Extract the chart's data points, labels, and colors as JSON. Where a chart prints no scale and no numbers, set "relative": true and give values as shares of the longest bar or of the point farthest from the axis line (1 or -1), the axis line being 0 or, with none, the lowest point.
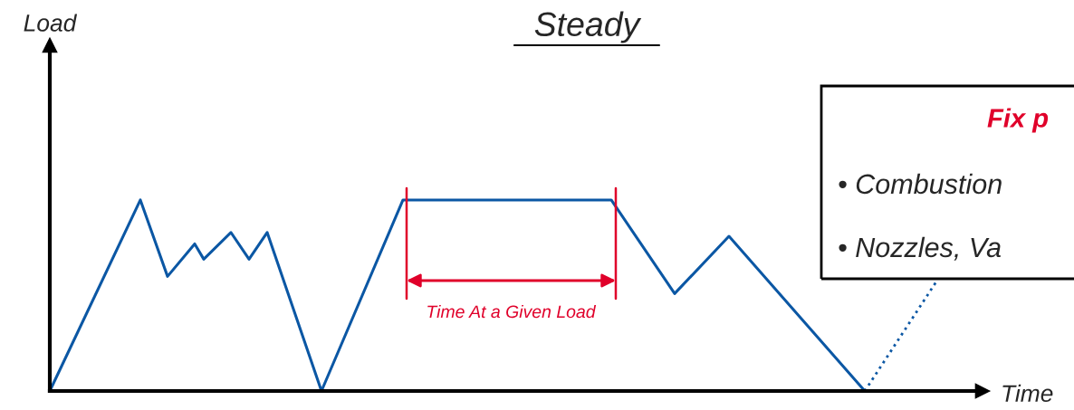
{
  "chart_data": {
    "type": "line",
    "title": "Steady",
    "xlabel": "Time",
    "relative": true,
    "categories": [
      null,
      null,
      null,
      null,
      null,
      null,
      null,
      null,
      null,
      null,
      null,
      null,
      null,
      null,
      null,
      null,
      null,
      null,
      null,
      null,
      null,
      null,
      null,
      null,
      null,
      null,
      null,
      null,
      null,
      null,
      null,
      null,
      null,
      null,
      null,
      null,
      null,
      null,
      null,
      null,
      null,
      null,
      null,
      null,
      null,
      null,
      null,
      null,
      null,
      null,
      null,
      null,
      null,
      null,
      null,
      null,
      null,
      null,
      null,
      null,
      null,
      null,
      null,
      null,
      null,
      null,
      null,
      null,
      null,
      null,
      null,
      null,
      null,
      null,
      null,
      null,
      null,
      null,
      null,
      null,
      null,
      null,
      null,
      null,
      null,
      null,
      null,
      null,
      null,
      null,
      null,
      null,
      null,
      null,
      null,
      null,
      null,
      null,
      null,
      null,
      null,
      null,
      null
    ],
    "series": [
      {
        "color": "#0b57a4",
        "line_style": "solid",
        "values": [
          0,
          null,
          null,
          null,
          null,
          null,
          null,
          null,
          null,
          null,
          1,
          null,
          null,
          0.6,
          null,
          null,
          0.77,
          0.69,
          null,
          null,
          0.83,
          null,
          0.69,
          null,
          0.83,
          null,
          null,
          null,
          null,
          null,
          0,
          null,
          null,
          null,
          null,
          null,
          null,
          null,
          null,
          1,
          null,
          null,
          null,
          null,
          null,
          null,
          null,
          null,
          null,
          null,
          null,
          null,
          null,
          null,
          null,
          null,
          null,
          null,
          null,
          null,
          null,
          null,
          1,
          null,
          null,
          null,
          null,
          null,
          null,
          0.51,
          null,
          null,
          null,
          null,
          null,
          0.81,
          null,
          null,
          null,
          null,
          null,
          null,
          null,
          null,
          null,
          null,
          null,
          null,
          null,
          null,
          0,
          null,
          null,
          null,
          null,
          null,
          null,
          null,
          null,
          null,
          null,
          null,
          null
        ]
      },
      {
        "color": "#0b57a4",
        "line_style": "dotted",
        "values": [
          null,
          null,
          null,
          null,
          null,
          null,
          null,
          null,
          null,
          null,
          null,
          null,
          null,
          null,
          null,
          null,
          null,
          null,
          null,
          null,
          null,
          null,
          null,
          null,
          null,
          null,
          null,
          null,
          null,
          null,
          null,
          null,
          null,
          null,
          null,
          null,
          null,
          null,
          null,
          null,
          null,
          null,
          null,
          null,
          null,
          null,
          null,
          null,
          null,
          null,
          null,
          null,
          null,
          null,
          null,
          null,
          null,
          null,
          null,
          null,
          null,
          null,
          null,
          null,
          null,
          null,
          null,
          null,
          null,
          null,
          null,
          null,
          null,
          null,
          null,
          null,
          null,
          null,
          null,
          null,
          null,
          null,
          null,
          null,
          null,
          null,
          null,
          null,
          null,
          null,
          0,
          null,
          null,
          null,
          null,
          null,
          null,
          null,
          0.58,
          null,
          null,
          null,
          null
        ]
      }
    ],
    "annotations": [
      "Time At a Given Load",
      "Fix p",
      "• Combustion",
      "• Nozzles, Va",
      "Load"
    ]
  }
}
